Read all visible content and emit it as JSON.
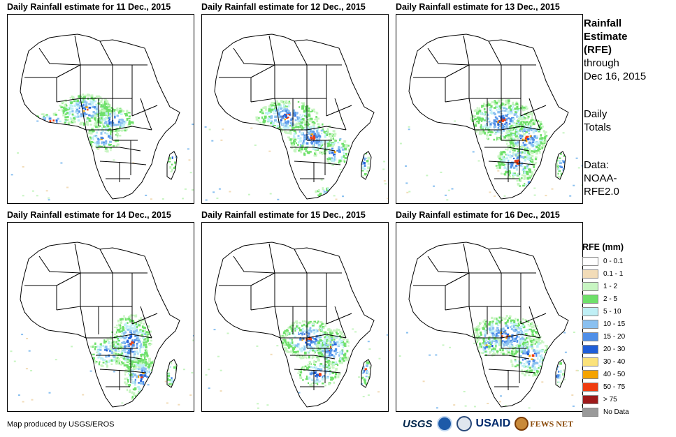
{
  "panels": [
    {
      "title": "Daily Rainfall estimate for 11 Dec., 2015"
    },
    {
      "title": "Daily Rainfall estimate for 12 Dec., 2015"
    },
    {
      "title": "Daily Rainfall estimate for 13 Dec., 2015"
    },
    {
      "title": "Daily Rainfall estimate for 14 Dec., 2015"
    },
    {
      "title": "Daily Rainfall estimate for 15 Dec., 2015"
    },
    {
      "title": "Daily Rainfall estimate for 16 Dec., 2015"
    }
  ],
  "sidebar": {
    "title_line1": "Rainfall",
    "title_line2": "Estimate",
    "title_line3": "(RFE)",
    "through_label": "through",
    "through_date": "Dec 16, 2015",
    "totals_line1": "Daily",
    "totals_line2": "Totals",
    "data_line1": "Data:",
    "data_line2": "NOAA-",
    "data_line3": "RFE2.0"
  },
  "legend": {
    "title": "RFE (mm)",
    "items": [
      {
        "label": "0 - 0.1",
        "color": "#ffffff"
      },
      {
        "label": "0.1 - 1",
        "color": "#f2dcb8"
      },
      {
        "label": "1 - 2",
        "color": "#c8f5c2"
      },
      {
        "label": "2 - 5",
        "color": "#6ee06a"
      },
      {
        "label": "5 - 10",
        "color": "#bfeff5"
      },
      {
        "label": "10 - 15",
        "color": "#8ac0f0"
      },
      {
        "label": "15 - 20",
        "color": "#4f8fe8"
      },
      {
        "label": "20 - 30",
        "color": "#1f5ed8"
      },
      {
        "label": "30 - 40",
        "color": "#fbe27a"
      },
      {
        "label": "40 - 50",
        "color": "#f5a300"
      },
      {
        "label": "50 - 75",
        "color": "#f03c10"
      },
      {
        "label": "> 75",
        "color": "#9e1a1a"
      },
      {
        "label": "No Data",
        "color": "#9a9a9a"
      }
    ]
  },
  "credit": "Map produced by USGS/EROS",
  "logos": {
    "usgs": "USGS",
    "usaid": "USAID",
    "fews": "FEWS NET"
  }
}
